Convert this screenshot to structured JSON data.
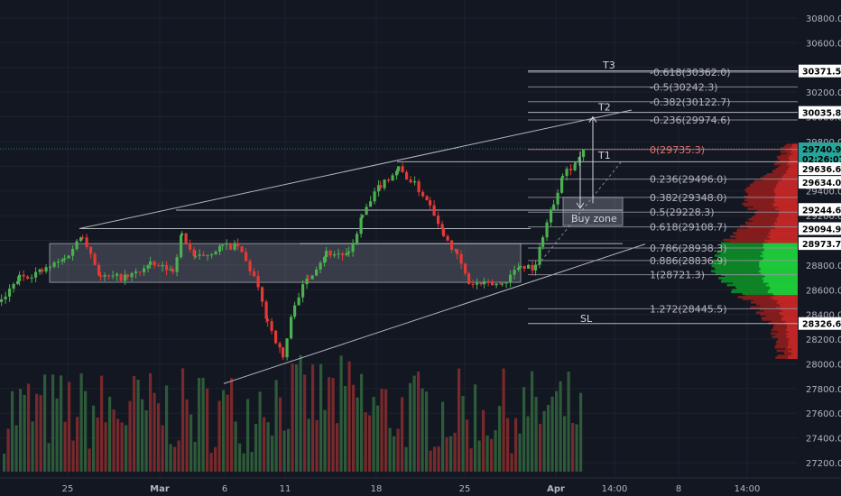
{
  "chart_data": {
    "type": "candlestick",
    "price_axis": {
      "ticks": [
        "30800.0",
        "30600.0",
        "30400.0",
        "30200.0",
        "30000.0",
        "29800.0",
        "29600.0",
        "29400.0",
        "29200.0",
        "29000.0",
        "28800.0",
        "28600.0",
        "28400.0",
        "28200.0",
        "28000.0",
        "27800.0",
        "27600.0",
        "27400.0",
        "27200.0"
      ],
      "range": [
        27120,
        30920
      ]
    },
    "time_axis": {
      "ticks": [
        "25",
        "Mar",
        "6",
        "11",
        "18",
        "25",
        "Apr",
        "14:00",
        "8",
        "14:00"
      ]
    },
    "price_tags": [
      {
        "text": "30371.5",
        "price": 30371.5,
        "bg": "#ffffff",
        "style": "light"
      },
      {
        "text": "30035.8",
        "price": 30035.8,
        "bg": "#ffffff",
        "style": "light"
      },
      {
        "text": "29740.9",
        "price": 29740.9,
        "bg": "#26a69a",
        "style": "green"
      },
      {
        "text": "02:26:07",
        "price": 29660,
        "bg": "#26a69a",
        "style": "green"
      },
      {
        "text": "29636.6",
        "price": 29580,
        "bg": "#ffffff",
        "style": "light"
      },
      {
        "text": "29634.0",
        "price": 29470,
        "bg": "#ffffff",
        "style": "light"
      },
      {
        "text": "29244.6",
        "price": 29250,
        "bg": "#ffffff",
        "style": "light"
      },
      {
        "text": "29094.9",
        "price": 29094.9,
        "bg": "#ffffff",
        "style": "light"
      },
      {
        "text": "28973.7",
        "price": 28973.7,
        "bg": "#ffffff",
        "style": "light"
      },
      {
        "text": "28326.6",
        "price": 28326.6,
        "bg": "#ffffff",
        "style": "light"
      }
    ],
    "fib_levels": [
      {
        "label": "-0.618(30362.0)",
        "price": 30362.0
      },
      {
        "label": "-0.5(30242.3)",
        "price": 30242.3
      },
      {
        "label": "-0.382(30122.7)",
        "price": 30122.7
      },
      {
        "label": "-0.236(29974.6)",
        "price": 29974.6
      },
      {
        "label": "0(29735.3)",
        "price": 29735.3
      },
      {
        "label": "0.236(29496.0)",
        "price": 29496.0
      },
      {
        "label": "0.382(29348.0)",
        "price": 29348.0
      },
      {
        "label": "0.5(29228.3)",
        "price": 29228.3
      },
      {
        "label": "0.618(29108.7)",
        "price": 29108.7
      },
      {
        "label": "0.786(28938.3)",
        "price": 28938.3
      },
      {
        "label": "0.886(28836.9)",
        "price": 28836.9
      },
      {
        "label": "1(28721.3)",
        "price": 28721.3
      },
      {
        "label": "1.272(28445.5)",
        "price": 28445.5
      }
    ],
    "annotations": [
      {
        "text": "T3",
        "price": 30420
      },
      {
        "text": "T2",
        "price": 30080
      },
      {
        "text": "T1",
        "price": 29690
      },
      {
        "text": "SL",
        "price": 28370
      },
      {
        "text": "Buy zone",
        "price": 29180
      }
    ],
    "zones": [
      {
        "name": "support-resistance-zone",
        "top": 28973.7,
        "bottom": 28660
      },
      {
        "name": "buy-zone",
        "top": 29348.0,
        "bottom": 29120
      }
    ],
    "colors": {
      "background": "#131722",
      "up": "#4caf50",
      "down": "#e53935",
      "grid": "#1e222d",
      "line": "#b2b5be",
      "fib": "#9598a1",
      "fib_zero": "#e57373",
      "current_price": "#26a69a"
    }
  }
}
